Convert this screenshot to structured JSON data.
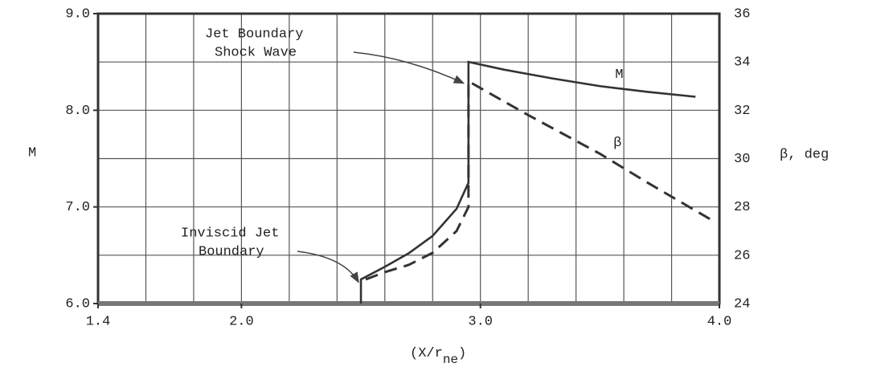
{
  "chart_data": {
    "type": "line",
    "ylabel": "M",
    "y2label": "β, deg",
    "xlabel": {
      "main": "(X/r",
      "sub": "ne",
      "end": ")"
    },
    "xlim": [
      1.4,
      4.0
    ],
    "xticks": [
      {
        "value": 1.4,
        "label": "1.4"
      },
      {
        "value": 2.0,
        "label": "2.0"
      },
      {
        "value": 3.0,
        "label": "3.0"
      },
      {
        "value": 4.0,
        "label": "4.0"
      }
    ],
    "xgrid": [
      1.6,
      1.8,
      2.0,
      2.2,
      2.4,
      2.6,
      2.8,
      3.0,
      3.2,
      3.4,
      3.6,
      3.8
    ],
    "ylim": [
      6,
      9
    ],
    "yticks": [
      {
        "value": 6,
        "label": "6.0"
      },
      {
        "value": 7,
        "label": "7.0"
      },
      {
        "value": 8,
        "label": "8.0"
      },
      {
        "value": 9,
        "label": "9.0"
      }
    ],
    "y2lim": [
      24,
      36
    ],
    "y2ticks": [
      24,
      26,
      28,
      30,
      32,
      34,
      36
    ],
    "grid": true,
    "series": [
      {
        "name": "M",
        "color": "#333",
        "dash": false,
        "x": [
          2.5,
          2.5,
          2.6,
          2.7,
          2.8,
          2.9,
          2.95,
          2.95,
          3.1,
          3.3,
          3.5,
          3.7,
          3.9
        ],
        "values": [
          6.0,
          6.25,
          6.38,
          6.52,
          6.7,
          6.98,
          7.25,
          8.5,
          8.42,
          8.33,
          8.25,
          8.19,
          8.14
        ]
      },
      {
        "name": "β",
        "color": "#333",
        "dash": true,
        "axis": "y2",
        "x": [
          2.52,
          2.6,
          2.7,
          2.8,
          2.9,
          2.95,
          2.95,
          3.2,
          3.5,
          3.7,
          3.96
        ],
        "values": [
          25.0,
          25.3,
          25.6,
          26.1,
          27.0,
          28.0,
          33.2,
          31.8,
          30.2,
          29.0,
          27.5
        ]
      }
    ],
    "annotations": [
      {
        "lines": [
          "Jet Boundary",
          "Shock Wave"
        ],
        "x": 2.93,
        "y": 8.28
      },
      {
        "lines": [
          "Inviscid Jet",
          "Boundary"
        ],
        "x": 2.49,
        "y": 6.22
      }
    ]
  }
}
